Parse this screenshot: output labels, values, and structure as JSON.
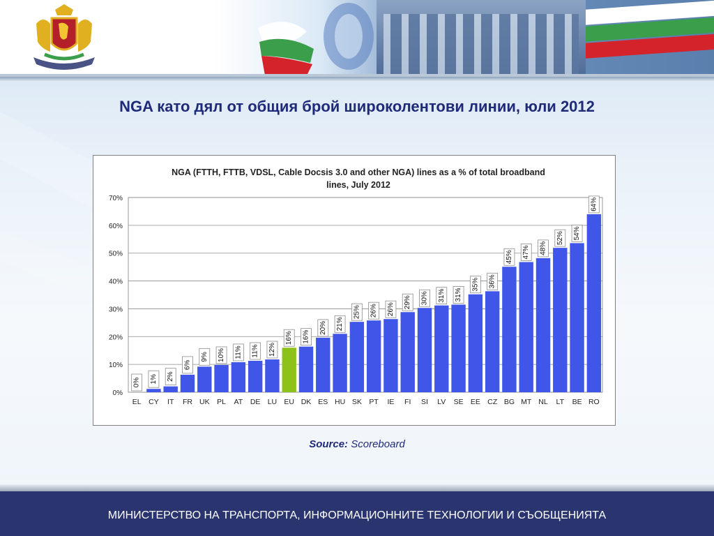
{
  "slide": {
    "title": "NGA като дял от общия брой широколентови линии, юли 2012",
    "source_label": "Source:",
    "source_value": "Scoreboard",
    "footer": "МИНИСТЕРСТВО НА ТРАНСПОРТА, ИНФОРМАЦИОННИТЕ ТЕХНОЛОГИИ И СЪОБЩЕНИЯТА"
  },
  "colors": {
    "title": "#1f2a78",
    "bar": "#3f56e8",
    "bar_highlight": "#8cc21a",
    "footer_bg": "#2a3570",
    "flag_white": "#ffffff",
    "flag_green": "#3a9e4a",
    "flag_red": "#d4232b"
  },
  "header": {
    "emblem": "bulgarian-coat-of-arms",
    "logo": "e-letter-logo"
  },
  "chart_data": {
    "type": "bar",
    "title_line1": "NGA (FTTH, FTTB, VDSL, Cable Docsis 3.0 and other NGA) lines as a % of total broadband",
    "title_line2": "lines, July 2012",
    "xlabel": "",
    "ylabel": "",
    "ylim": [
      0,
      70
    ],
    "yticks": [
      "0%",
      "10%",
      "20%",
      "30%",
      "40%",
      "50%",
      "60%",
      "70%"
    ],
    "grid": true,
    "legend": "none",
    "categories": [
      "EL",
      "CY",
      "IT",
      "FR",
      "UK",
      "PL",
      "AT",
      "DE",
      "LU",
      "EU",
      "DK",
      "ES",
      "HU",
      "SK",
      "PT",
      "IE",
      "FI",
      "SI",
      "LV",
      "SE",
      "EE",
      "CZ",
      "BG",
      "MT",
      "NL",
      "LT",
      "BE",
      "RO"
    ],
    "values": [
      0,
      1.2,
      2.1,
      6.3,
      9.2,
      9.8,
      10.8,
      11.3,
      11.8,
      16,
      16.4,
      19.6,
      21,
      25.3,
      25.8,
      26.3,
      28.8,
      30.3,
      31.2,
      31.5,
      35.2,
      36.3,
      45.1,
      46.8,
      48.2,
      51.9,
      53.6,
      64
    ],
    "labels": [
      "0%",
      "1%",
      "2%",
      "6%",
      "9%",
      "10%",
      "11%",
      "11%",
      "12%",
      "16%",
      "16%",
      "20%",
      "21%",
      "25%",
      "26%",
      "26%",
      "29%",
      "30%",
      "31%",
      "31%",
      "35%",
      "36%",
      "45%",
      "47%",
      "48%",
      "52%",
      "54%",
      "64%"
    ],
    "highlight": "EU"
  }
}
